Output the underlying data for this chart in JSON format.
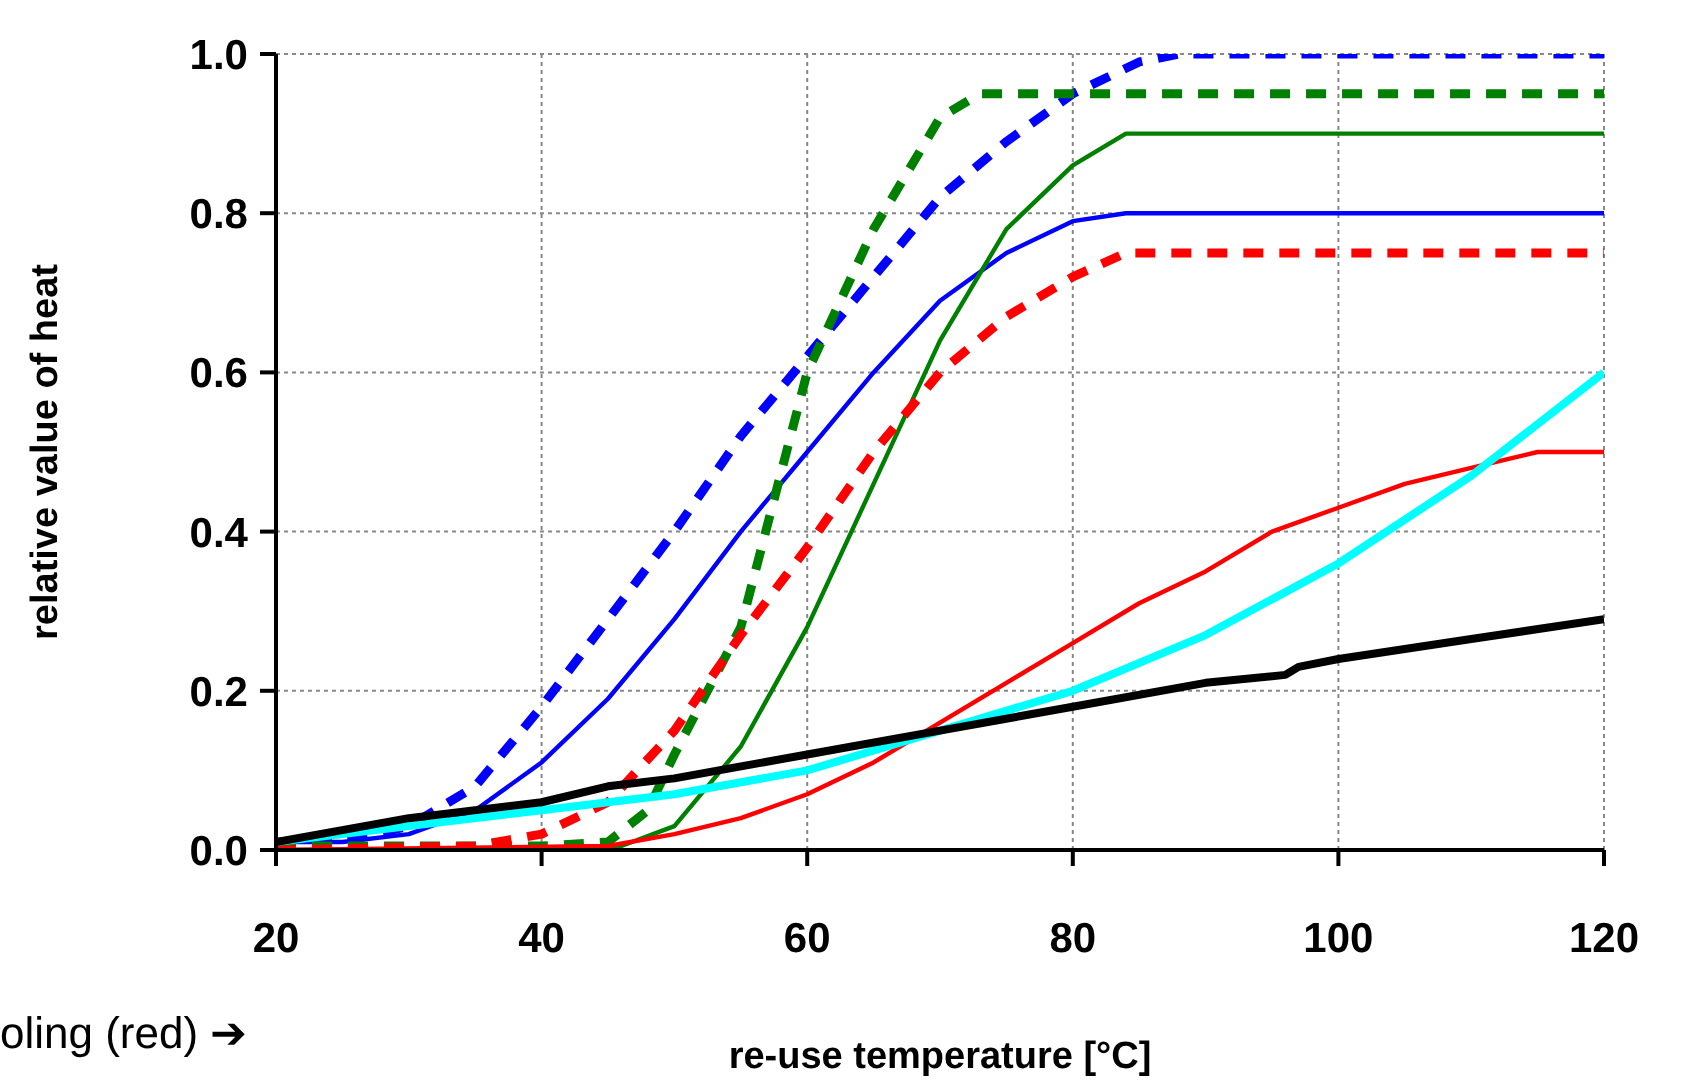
{
  "chart_data": {
    "type": "line",
    "xlabel": "re-use temperature [°C]",
    "ylabel": "relative value of heat",
    "xlim": [
      20,
      120
    ],
    "xticks": [
      20,
      40,
      60,
      80,
      100,
      120
    ],
    "ylim": [
      0,
      1
    ],
    "yticks": [
      {
        "value": 0,
        "label": "0.0"
      },
      {
        "value": 0.2,
        "label": "0.2"
      },
      {
        "value": 0.4,
        "label": "0.4"
      },
      {
        "value": 0.6,
        "label": "0.6"
      },
      {
        "value": 0.8,
        "label": "0.8"
      },
      {
        "value": 1,
        "label": "1.0"
      }
    ],
    "grid": true,
    "marker": "none",
    "annotations": [
      "oling (red) ➔"
    ],
    "series": [
      {
        "color": "#0000ff",
        "line_style": "dashed",
        "x": [
          20,
          25,
          30,
          35,
          40,
          45,
          50,
          55,
          60,
          65,
          70,
          75,
          80,
          85,
          88,
          120
        ],
        "values": [
          0.01,
          0.01,
          0.03,
          0.08,
          0.18,
          0.29,
          0.4,
          0.52,
          0.62,
          0.72,
          0.82,
          0.89,
          0.95,
          0.99,
          1,
          1
        ]
      },
      {
        "color": "#0000ff",
        "line_style": "solid",
        "x": [
          20,
          25,
          30,
          35,
          40,
          45,
          50,
          55,
          60,
          65,
          70,
          75,
          80,
          84,
          120
        ],
        "values": [
          0.01,
          0.01,
          0.02,
          0.05,
          0.11,
          0.19,
          0.29,
          0.4,
          0.5,
          0.6,
          0.69,
          0.75,
          0.79,
          0.8,
          0.8
        ]
      },
      {
        "color": "#008000",
        "line_style": "dashed",
        "x": [
          20,
          30,
          40,
          45,
          48,
          50,
          55,
          60,
          65,
          70,
          73,
          120
        ],
        "values": [
          0.005,
          0.005,
          0.005,
          0.01,
          0.05,
          0.12,
          0.28,
          0.6,
          0.78,
          0.92,
          0.95,
          0.95
        ]
      },
      {
        "color": "#008000",
        "line_style": "solid",
        "x": [
          20,
          40,
          46,
          50,
          55,
          60,
          65,
          70,
          75,
          80,
          84,
          120
        ],
        "values": [
          0,
          0,
          0.005,
          0.03,
          0.13,
          0.28,
          0.46,
          0.64,
          0.78,
          0.86,
          0.9,
          0.9
        ]
      },
      {
        "color": "#ff0000",
        "line_style": "dashed",
        "x": [
          20,
          35,
          40,
          45,
          50,
          55,
          60,
          65,
          70,
          75,
          80,
          84,
          120
        ],
        "values": [
          0,
          0.005,
          0.02,
          0.06,
          0.15,
          0.27,
          0.38,
          0.5,
          0.6,
          0.67,
          0.72,
          0.75,
          0.75
        ]
      },
      {
        "color": "#ff0000",
        "line_style": "solid",
        "x": [
          20,
          45,
          50,
          55,
          60,
          65,
          70,
          75,
          80,
          85,
          90,
          95,
          100,
          105,
          110,
          115,
          120
        ],
        "values": [
          0,
          0.005,
          0.02,
          0.04,
          0.07,
          0.11,
          0.16,
          0.21,
          0.26,
          0.31,
          0.35,
          0.4,
          0.43,
          0.46,
          0.48,
          0.5,
          0.5
        ]
      },
      {
        "color": "#00ffff",
        "line_style": "solid",
        "x": [
          20,
          30,
          40,
          50,
          60,
          70,
          80,
          90,
          100,
          110,
          120
        ],
        "values": [
          0.01,
          0.03,
          0.05,
          0.07,
          0.1,
          0.15,
          0.2,
          0.27,
          0.36,
          0.47,
          0.6
        ]
      },
      {
        "color": "#000000",
        "line_style": "solid",
        "x": [
          20,
          30,
          40,
          45,
          50,
          60,
          70,
          80,
          90,
          96,
          97,
          100,
          110,
          120
        ],
        "values": [
          0.01,
          0.04,
          0.06,
          0.08,
          0.09,
          0.12,
          0.15,
          0.18,
          0.21,
          0.22,
          0.23,
          0.24,
          0.265,
          0.29
        ]
      }
    ]
  }
}
